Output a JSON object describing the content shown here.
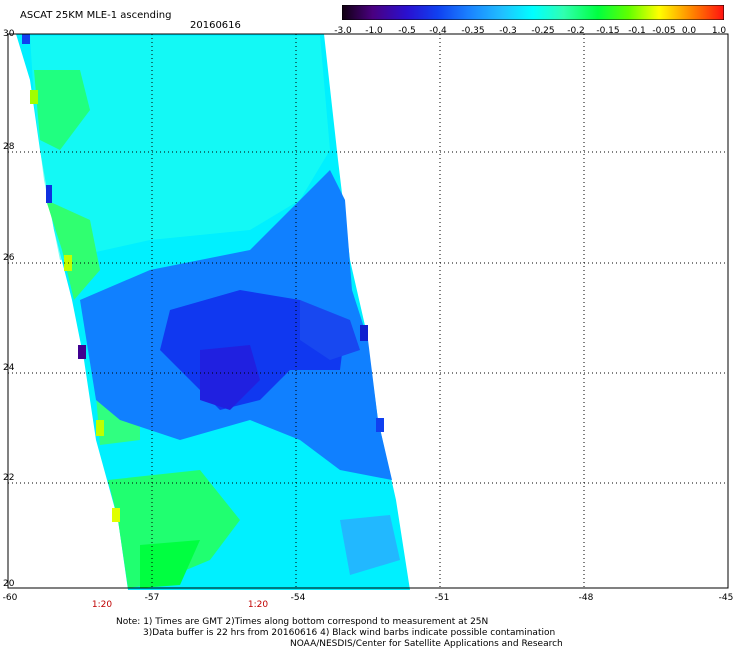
{
  "header": {
    "title": "ASCAT 25KM MLE-1 ascending",
    "date": "20160616"
  },
  "colorbar": {
    "labels": [
      "-3.0",
      "-1.0",
      "-0.5",
      "-0.4",
      "-0.35",
      "-0.3",
      "-0.25",
      "-0.2",
      "-0.15",
      "-0.1",
      "-0.05",
      "0.0",
      "1.0"
    ],
    "colors": [
      "#300030",
      "#6000a0",
      "#2020e0",
      "#1850f0",
      "#2090ff",
      "#30c8ff",
      "#00ffff",
      "#20ffa0",
      "#00ff40",
      "#80ff00",
      "#ffff00",
      "#ff8000",
      "#ff2000"
    ]
  },
  "axes": {
    "y_ticks": [
      "30",
      "28",
      "26",
      "24",
      "22",
      "20"
    ],
    "x_ticks": [
      "-60",
      "-57",
      "-54",
      "-51",
      "-48",
      "-45"
    ],
    "time_labels": [
      "1:20",
      "1:20"
    ]
  },
  "notes": {
    "line1": "Note: 1) Times are GMT 2)Times along bottom correspond to measurement at 25N",
    "line2": "3)Data buffer is 22 hrs from 20160616 4) Black wind barbs indicate possible contamination",
    "line3": "NOAA/NESDIS/Center for Satellite Applications and Research"
  }
}
